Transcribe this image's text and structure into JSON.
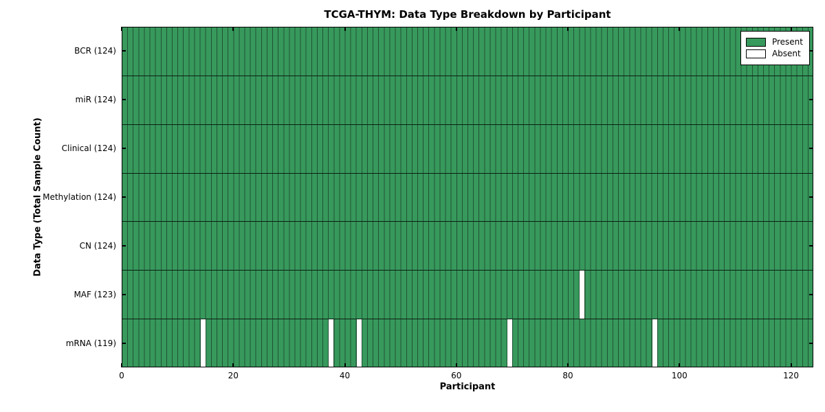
{
  "chart_data": {
    "type": "heatmap",
    "title": "TCGA-THYM: Data Type Breakdown by Participant",
    "xlabel": "Participant",
    "ylabel": "Data Type (Total Sample Count)",
    "n_participants": 124,
    "x_range": [
      0,
      124
    ],
    "x_ticks": [
      0,
      20,
      40,
      60,
      80,
      100,
      120
    ],
    "grid": "cell-borders",
    "rows": [
      {
        "name": "BCR",
        "label": "BCR (124)",
        "present_count": 124,
        "absent_participants": []
      },
      {
        "name": "miR",
        "label": "miR (124)",
        "present_count": 124,
        "absent_participants": []
      },
      {
        "name": "Clinical",
        "label": "Clinical (124)",
        "present_count": 124,
        "absent_participants": []
      },
      {
        "name": "Methylation",
        "label": "Methylation (124)",
        "present_count": 124,
        "absent_participants": []
      },
      {
        "name": "CN",
        "label": "CN (124)",
        "present_count": 124,
        "absent_participants": []
      },
      {
        "name": "MAF",
        "label": "MAF (123)",
        "present_count": 123,
        "absent_participants": [
          82
        ]
      },
      {
        "name": "mRNA",
        "label": "mRNA (119)",
        "present_count": 119,
        "absent_participants": [
          14,
          37,
          42,
          69,
          95
        ]
      }
    ],
    "legend": [
      {
        "label": "Present",
        "color": "#37995c"
      },
      {
        "label": "Absent",
        "color": "#ffffff"
      }
    ],
    "legend_position": "top-right",
    "colors": {
      "present": "#37995c",
      "absent": "#ffffff",
      "cell_border": "#215235",
      "row_separator": "#0a1f12",
      "spine": "#000000"
    }
  }
}
